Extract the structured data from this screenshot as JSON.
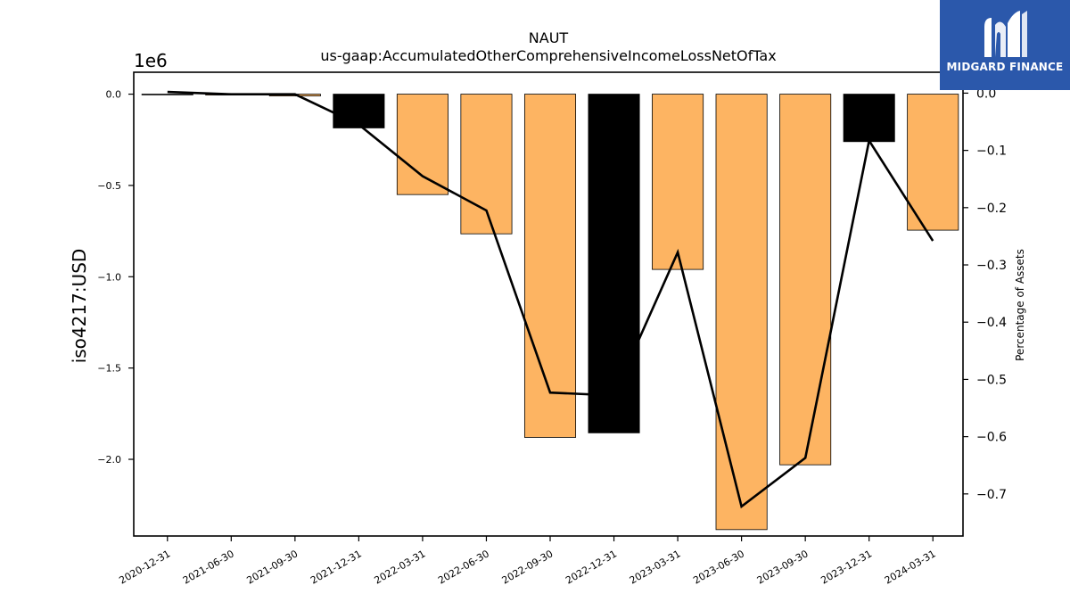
{
  "chart_data": {
    "type": "bar",
    "title": "NAUT",
    "subtitle": "us-gaap:AccumulatedOtherComprehensiveIncomeLossNetOfTax",
    "ylabel": "iso4217:USD",
    "y_offset_label": "1e6",
    "y2label": "Percentage of Assets",
    "categories": [
      "2020-12-31",
      "2021-06-30",
      "2021-09-30",
      "2021-12-31",
      "2022-03-31",
      "2022-06-30",
      "2022-09-30",
      "2022-12-31",
      "2023-03-31",
      "2023-06-30",
      "2023-09-30",
      "2023-12-31",
      "2024-03-31"
    ],
    "bar_values": [
      0,
      -5000,
      -10000,
      -185000,
      -550000,
      -765000,
      -1880000,
      -1855000,
      -960000,
      -2385000,
      -2030000,
      -260000,
      -745000
    ],
    "bar_colors": [
      "#fdb462",
      "#fdb462",
      "#fdb462",
      "#000000",
      "#fdb462",
      "#fdb462",
      "#fdb462",
      "#000000",
      "#fdb462",
      "#fdb462",
      "#fdb462",
      "#000000",
      "#fdb462"
    ],
    "line_values": [
      0.002,
      -0.002,
      -0.002,
      -0.055,
      -0.145,
      -0.205,
      -0.523,
      -0.528,
      -0.278,
      -0.722,
      -0.637,
      -0.083,
      -0.258
    ],
    "ylim": [
      -2420000,
      120000
    ],
    "y2lim": [
      -0.7735,
      0.0365
    ],
    "yticks": [
      0.0,
      -0.5,
      -1.0,
      -1.5,
      -2.0
    ],
    "ytick_labels": [
      "0.0",
      "−0.5",
      "−1.0",
      "−1.5",
      "−2.0"
    ],
    "y2ticks": [
      0.0,
      -0.1,
      -0.2,
      -0.3,
      -0.4,
      -0.5,
      -0.6,
      -0.7
    ],
    "y2tick_labels": [
      "0.0",
      "−0.1",
      "−0.2",
      "−0.3",
      "−0.4",
      "−0.5",
      "−0.6",
      "−0.7"
    ],
    "line_color": "#000000",
    "grid": false
  },
  "logo": {
    "text": "MIDGARD FINANCE",
    "background": "#2b58ab"
  }
}
